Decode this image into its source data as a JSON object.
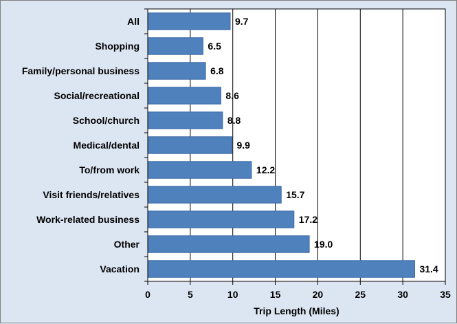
{
  "chart_data": {
    "type": "bar",
    "orientation": "horizontal",
    "categories": [
      "All",
      "Shopping",
      "Family/personal business",
      "Social/recreational",
      "School/church",
      "Medical/dental",
      "To/from work",
      "Visit friends/relatives",
      "Work-related business",
      "Other",
      "Vacation"
    ],
    "values": [
      9.7,
      6.5,
      6.8,
      8.6,
      8.8,
      9.9,
      12.2,
      15.7,
      17.2,
      19.0,
      31.4
    ],
    "data_labels": [
      "9.7",
      "6.5",
      "6.8",
      "8.6",
      "8.8",
      "9.9",
      "12.2",
      "15.7",
      "17.2",
      "19.0",
      "31.4"
    ],
    "xlabel": "Trip Length (Miles)",
    "xlim": [
      0,
      35
    ],
    "xticks": [
      "0",
      "5",
      "10",
      "15",
      "20",
      "25",
      "30",
      "35"
    ],
    "grid": "vertical",
    "legend": "none",
    "colors": {
      "bar": "#4f81bd",
      "bar_border": "#3a6aa8",
      "background": "#dce6f2",
      "plot_area": "#ffffff",
      "grid": "#000000"
    }
  }
}
